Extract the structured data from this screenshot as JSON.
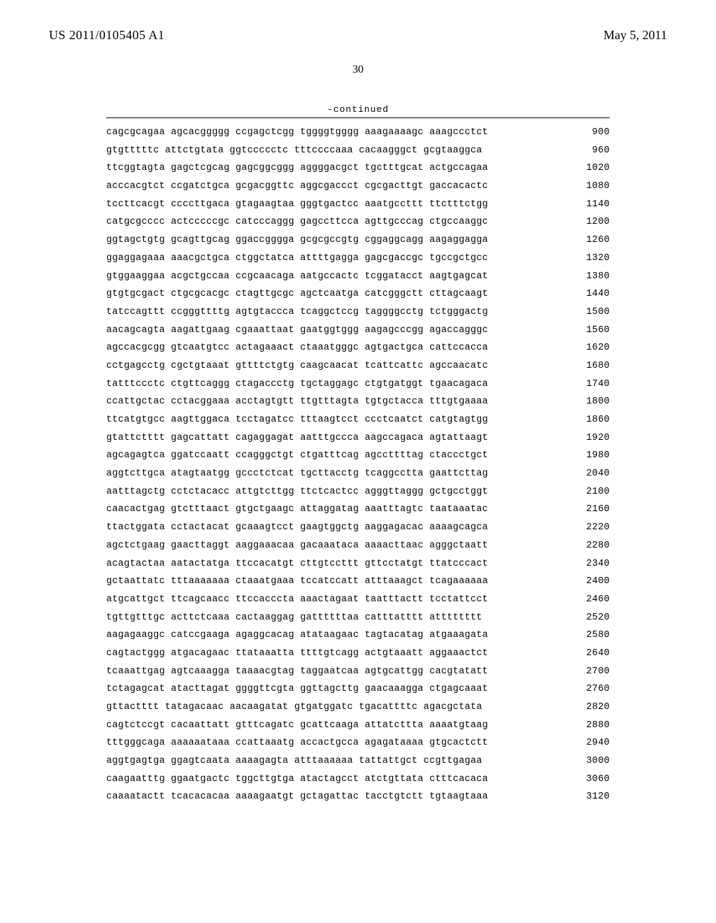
{
  "header": {
    "publication_number": "US 2011/0105405 A1",
    "publication_date": "May 5, 2011"
  },
  "page_number": "30",
  "continued_label": "-continued",
  "sequence": {
    "font_family": "Courier New",
    "font_size_pt": 10,
    "text_color": "#000000",
    "background_color": "#ffffff",
    "border_color": "#000000",
    "rows": [
      {
        "groups": [
          "cagcgcagaa",
          "agcacggggg",
          "ccgagctcgg",
          "tggggtgggg",
          "aaagaaaagc",
          "aaagccctct"
        ],
        "pos": 900
      },
      {
        "groups": [
          "gtgtttttc",
          "attctgtata",
          "ggtccccctc",
          "tttccccaaa",
          "cacaagggct",
          "gcgtaaggca"
        ],
        "pos": 960
      },
      {
        "groups": [
          "ttcggtagta",
          "gagctcgcag",
          "gagcggcggg",
          "aggggacgct",
          "tgctttgcat",
          "actgccagaa"
        ],
        "pos": 1020
      },
      {
        "groups": [
          "acccacgtct",
          "ccgatctgca",
          "gcgacggttc",
          "aggcgaccct",
          "cgcgacttgt",
          "gaccacactc"
        ],
        "pos": 1080
      },
      {
        "groups": [
          "tccttcacgt",
          "ccccttgaca",
          "gtagaagtaa",
          "gggtgactcc",
          "aaatgccttt",
          "ttctttctgg"
        ],
        "pos": 1140
      },
      {
        "groups": [
          "catgcgcccc",
          "actcccccgc",
          "catcccaggg",
          "gagccttcca",
          "agttgcccag",
          "ctgccaaggc"
        ],
        "pos": 1200
      },
      {
        "groups": [
          "ggtagctgtg",
          "gcagttgcag",
          "ggaccgggga",
          "gcgcgccgtg",
          "cggaggcagg",
          "aagaggagga"
        ],
        "pos": 1260
      },
      {
        "groups": [
          "ggaggagaaa",
          "aaacgctgca",
          "ctggctatca",
          "attttgagga",
          "gagcgaccgc",
          "tgccgctgcc"
        ],
        "pos": 1320
      },
      {
        "groups": [
          "gtggaaggaa",
          "acgctgccaa",
          "ccgcaacaga",
          "aatgccactc",
          "tcggatacct",
          "aagtgagcat"
        ],
        "pos": 1380
      },
      {
        "groups": [
          "gtgtgcgact",
          "ctgcgcacgc",
          "ctagttgcgc",
          "agctcaatga",
          "catcgggctt",
          "cttagcaagt"
        ],
        "pos": 1440
      },
      {
        "groups": [
          "tatccagttt",
          "ccgggttttg",
          "agtgtaccca",
          "tcaggctccg",
          "taggggcctg",
          "tctgggactg"
        ],
        "pos": 1500
      },
      {
        "groups": [
          "aacagcagta",
          "aagattgaag",
          "cgaaattaat",
          "gaatggtggg",
          "aagagcccgg",
          "agaccagggc"
        ],
        "pos": 1560
      },
      {
        "groups": [
          "agccacgcgg",
          "gtcaatgtcc",
          "actagaaact",
          "ctaaatgggc",
          "agtgactgca",
          "cattccacca"
        ],
        "pos": 1620
      },
      {
        "groups": [
          "cctgagcctg",
          "cgctgtaaat",
          "gttttctgtg",
          "caagcaacat",
          "tcattcattc",
          "agccaacatc"
        ],
        "pos": 1680
      },
      {
        "groups": [
          "tatttccctc",
          "ctgttcaggg",
          "ctagaccctg",
          "tgctaggagc",
          "ctgtgatggt",
          "tgaacagaca"
        ],
        "pos": 1740
      },
      {
        "groups": [
          "ccattgctac",
          "cctacggaaa",
          "acctagtgtt",
          "ttgtttagta",
          "tgtgctacca",
          "tttgtgaaaa"
        ],
        "pos": 1800
      },
      {
        "groups": [
          "ttcatgtgcc",
          "aagttggaca",
          "tcctagatcc",
          "tttaagtcct",
          "ccctcaatct",
          "catgtagtgg"
        ],
        "pos": 1860
      },
      {
        "groups": [
          "gtattctttt",
          "gagcattatt",
          "cagaggagat",
          "aatttgccca",
          "aagccagaca",
          "agtattaagt"
        ],
        "pos": 1920
      },
      {
        "groups": [
          "agcagagtca",
          "ggatccaatt",
          "ccagggctgt",
          "ctgatttcag",
          "agccttttag",
          "ctaccctgct"
        ],
        "pos": 1980
      },
      {
        "groups": [
          "aggtcttgca",
          "atagtaatgg",
          "gccctctcat",
          "tgcttacctg",
          "tcaggcctta",
          "gaattcttag"
        ],
        "pos": 2040
      },
      {
        "groups": [
          "aatttagctg",
          "cctctacacc",
          "attgtcttgg",
          "ttctcactcc",
          "agggttaggg",
          "gctgcctggt"
        ],
        "pos": 2100
      },
      {
        "groups": [
          "caacactgag",
          "gtctttaact",
          "gtgctgaagc",
          "attaggatag",
          "aaatttagtc",
          "taataaatac"
        ],
        "pos": 2160
      },
      {
        "groups": [
          "ttactggata",
          "cctactacat",
          "gcaaagtcct",
          "gaagtggctg",
          "aaggagacac",
          "aaaagcagca"
        ],
        "pos": 2220
      },
      {
        "groups": [
          "agctctgaag",
          "gaacttaggt",
          "aaggaaacaa",
          "gacaaataca",
          "aaaacttaac",
          "agggctaatt"
        ],
        "pos": 2280
      },
      {
        "groups": [
          "acagtactaa",
          "aatactatga",
          "ttccacatgt",
          "cttgtccttt",
          "gttcctatgt",
          "ttatcccact"
        ],
        "pos": 2340
      },
      {
        "groups": [
          "gctaattatc",
          "tttaaaaaaa",
          "ctaaatgaaa",
          "tccatccatt",
          "atttaaagct",
          "tcagaaaaaa"
        ],
        "pos": 2400
      },
      {
        "groups": [
          "atgcattgct",
          "ttcagcaacc",
          "ttccacccta",
          "aaactagaat",
          "taatttactt",
          "tcctattcct"
        ],
        "pos": 2460
      },
      {
        "groups": [
          "tgttgtttgc",
          "acttctcaaa",
          "cactaaggag",
          "gattttttaa",
          "catttatttt",
          "atttttttt"
        ],
        "pos": 2520
      },
      {
        "groups": [
          "aagagaaggc",
          "catccgaaga",
          "agaggcacag",
          "atataagaac",
          "tagtacatag",
          "atgaaagata"
        ],
        "pos": 2580
      },
      {
        "groups": [
          "cagtactggg",
          "atgacagaac",
          "ttataaatta",
          "ttttgtcagg",
          "actgtaaatt",
          "aggaaactct"
        ],
        "pos": 2640
      },
      {
        "groups": [
          "tcaaattgag",
          "agtcaaagga",
          "taaaacgtag",
          "taggaatcaa",
          "agtgcattgg",
          "cacgtatatt"
        ],
        "pos": 2700
      },
      {
        "groups": [
          "tctagagcat",
          "atacttagat",
          "ggggttcgta",
          "ggttagcttg",
          "gaacaaagga",
          "ctgagcaaat"
        ],
        "pos": 2760
      },
      {
        "groups": [
          "gttactttt",
          "tatagacaac",
          "aacaagatat",
          "gtgatggatc",
          "tgacattttc",
          "agacgctata"
        ],
        "pos": 2820
      },
      {
        "groups": [
          "cagtctccgt",
          "cacaattatt",
          "gtttcagatc",
          "gcattcaaga",
          "attatcttta",
          "aaaatgtaag"
        ],
        "pos": 2880
      },
      {
        "groups": [
          "tttgggcaga",
          "aaaaaataaa",
          "ccattaaatg",
          "accactgcca",
          "agagataaaa",
          "gtgcactctt"
        ],
        "pos": 2940
      },
      {
        "groups": [
          "aggtgagtga",
          "ggagtcaata",
          "aaaagagta",
          "atttaaaaaa",
          "tattattgct",
          "ccgttgagaa"
        ],
        "pos": 3000
      },
      {
        "groups": [
          "caagaatttg",
          "ggaatgactc",
          "tggcttgtga",
          "atactagcct",
          "atctgttata",
          "ctttcacaca"
        ],
        "pos": 3060
      },
      {
        "groups": [
          "caaaatactt",
          "tcacacacaa",
          "aaaagaatgt",
          "gctagattac",
          "tacctgtctt",
          "tgtaagtaaa"
        ],
        "pos": 3120
      }
    ]
  }
}
